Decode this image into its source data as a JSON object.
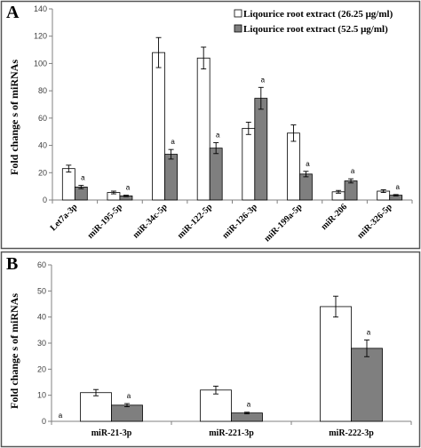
{
  "colors": {
    "series_1": "#ffffff",
    "series_2": "#7f7f7f",
    "axis": "#808080",
    "frame": "#555555"
  },
  "chart_data": [
    {
      "panel": "A",
      "type": "bar",
      "ylabel": "Fold change s of miRNAs",
      "ylim": [
        0,
        140
      ],
      "yticks": [
        0,
        20,
        40,
        60,
        80,
        100,
        120,
        140
      ],
      "grid": false,
      "legend_position": "top-right",
      "categories": [
        "Let7a-3p",
        "miR-195-5p",
        "miR-34c-5p",
        "miR-122-5p",
        "miR-126-3p",
        "miR-199a-5p",
        "miR-206",
        "miR-326-5p"
      ],
      "series": [
        {
          "name": "Liqourice root extract (26.25 μg/ml)",
          "values": [
            23,
            5.5,
            108,
            104,
            52.5,
            49,
            6,
            6.5
          ],
          "errors": [
            2.5,
            1,
            11,
            8,
            4.5,
            6,
            1,
            1
          ],
          "annotations": [
            "",
            "",
            "",
            "",
            "",
            "",
            "",
            ""
          ]
        },
        {
          "name": "Liqourice root extract (52.5 μg/ml)",
          "values": [
            9.5,
            3,
            33.5,
            38,
            74.5,
            19,
            14,
            3.5
          ],
          "errors": [
            1.2,
            0.5,
            3.5,
            4,
            8,
            2,
            1.5,
            0.5
          ],
          "annotations": [
            "a",
            "a",
            "a",
            "a",
            "a",
            "a",
            "a",
            "a"
          ]
        }
      ]
    },
    {
      "panel": "B",
      "type": "bar",
      "ylabel": "Fold change s of miRNAs",
      "ylim": [
        0,
        60
      ],
      "yticks": [
        0,
        10,
        20,
        30,
        40,
        50,
        60
      ],
      "grid": false,
      "categories": [
        "miR-21-3p",
        "miR-221-3p",
        "miR-222-3p"
      ],
      "series": [
        {
          "values": [
            11,
            12,
            44
          ],
          "errors": [
            1.2,
            1.5,
            4
          ],
          "annotations": [
            "",
            "",
            ""
          ]
        },
        {
          "values": [
            6.2,
            3.2,
            28
          ],
          "errors": [
            0.6,
            0.3,
            3.2
          ],
          "annotations": [
            "a",
            "a",
            "a"
          ]
        }
      ],
      "extra_annotation": "a"
    }
  ]
}
